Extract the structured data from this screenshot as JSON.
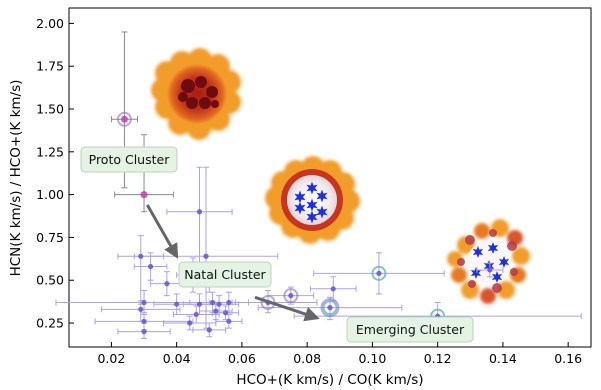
{
  "chart_data": {
    "type": "scatter",
    "xlabel": "HCO+(K km/s) / CO(K km/s)",
    "ylabel": "HCN(K km/s) / HCO+(K km/s)",
    "xlim": [
      0.007,
      0.167
    ],
    "ylim": [
      0.11,
      2.09
    ],
    "xticks": [
      0.02,
      0.04,
      0.06,
      0.08,
      0.1,
      0.12,
      0.14,
      0.16
    ],
    "xtick_labels": [
      "0.02",
      "0.04",
      "0.06",
      "0.08",
      "0.10",
      "0.12",
      "0.14",
      "0.16"
    ],
    "yticks": [
      0.25,
      0.5,
      0.75,
      1.0,
      1.25,
      1.5,
      1.75,
      2.0
    ],
    "ytick_labels": [
      "0.25",
      "0.50",
      "0.75",
      "1.00",
      "1.25",
      "1.50",
      "1.75",
      "2.00"
    ],
    "grid": false,
    "colors": {
      "points": "#6a5ad0",
      "error_bars": "#a9a2ec",
      "proto_point": "#c04ab0",
      "proto_error": "#8a8a8a",
      "ring_teal": "#58b0c0",
      "ring_purple": "#8a6ed0",
      "arrow": "#666666",
      "label_bg": "#e4f3e3",
      "label_border": "#b7d5b4"
    },
    "points": [
      {
        "x": 0.024,
        "y": 1.44,
        "xerr": 0.004,
        "yerr_low": 0.4,
        "yerr_high": 0.51,
        "style": "proto",
        "ring": "purple"
      },
      {
        "x": 0.03,
        "y": 1.0,
        "xerr": 0.009,
        "yerr_low": 0.1,
        "yerr_high": 0.35,
        "style": "proto",
        "ring": "none"
      },
      {
        "x": 0.029,
        "y": 0.64,
        "xerr": 0.007,
        "yerr_low": 0.28,
        "yerr_high": 0.12,
        "style": "normal",
        "ring": "none"
      },
      {
        "x": 0.032,
        "y": 0.58,
        "xerr": 0.005,
        "yerr_low": 0.08,
        "yerr_high": 0.08,
        "style": "normal",
        "ring": "none"
      },
      {
        "x": 0.047,
        "y": 0.9,
        "xerr": 0.01,
        "yerr_low": 0.32,
        "yerr_high": 0.26,
        "style": "normal",
        "ring": "none"
      },
      {
        "x": 0.049,
        "y": 0.64,
        "xerr": 0.022,
        "yerr_low": 0.42,
        "yerr_high": 0.52,
        "style": "normal",
        "ring": "none"
      },
      {
        "x": 0.045,
        "y": 0.53,
        "xerr": 0.005,
        "yerr_low": 0.1,
        "yerr_high": 0.1,
        "style": "normal",
        "ring": "none"
      },
      {
        "x": 0.05,
        "y": 0.5,
        "xerr": 0.004,
        "yerr_low": 0.07,
        "yerr_high": 0.07,
        "style": "normal",
        "ring": "none"
      },
      {
        "x": 0.037,
        "y": 0.48,
        "xerr": 0.005,
        "yerr_low": 0.07,
        "yerr_high": 0.07,
        "style": "normal",
        "ring": "none"
      },
      {
        "x": 0.047,
        "y": 0.36,
        "xerr": 0.005,
        "yerr_low": 0.06,
        "yerr_high": 0.06,
        "style": "normal",
        "ring": "none"
      },
      {
        "x": 0.051,
        "y": 0.37,
        "xerr": 0.007,
        "yerr_low": 0.06,
        "yerr_high": 0.06,
        "style": "normal",
        "ring": "none"
      },
      {
        "x": 0.056,
        "y": 0.37,
        "xerr": 0.006,
        "yerr_low": 0.06,
        "yerr_high": 0.06,
        "style": "normal",
        "ring": "none"
      },
      {
        "x": 0.053,
        "y": 0.36,
        "xerr": 0.006,
        "yerr_low": 0.05,
        "yerr_high": 0.05,
        "style": "normal",
        "ring": "none"
      },
      {
        "x": 0.04,
        "y": 0.36,
        "xerr": 0.007,
        "yerr_low": 0.06,
        "yerr_high": 0.06,
        "style": "normal",
        "ring": "none"
      },
      {
        "x": 0.046,
        "y": 0.3,
        "xerr": 0.007,
        "yerr_low": 0.05,
        "yerr_high": 0.05,
        "style": "normal",
        "ring": "none"
      },
      {
        "x": 0.052,
        "y": 0.32,
        "xerr": 0.005,
        "yerr_low": 0.05,
        "yerr_high": 0.05,
        "style": "normal",
        "ring": "none"
      },
      {
        "x": 0.055,
        "y": 0.31,
        "xerr": 0.004,
        "yerr_low": 0.04,
        "yerr_high": 0.04,
        "style": "normal",
        "ring": "none"
      },
      {
        "x": 0.03,
        "y": 0.37,
        "xerr": 0.027,
        "yerr_low": 0.07,
        "yerr_high": 0.07,
        "style": "normal",
        "ring": "none"
      },
      {
        "x": 0.029,
        "y": 0.33,
        "xerr": 0.012,
        "yerr_low": 0.07,
        "yerr_high": 0.05,
        "style": "normal",
        "ring": "none"
      },
      {
        "x": 0.03,
        "y": 0.26,
        "xerr": 0.015,
        "yerr_low": 0.05,
        "yerr_high": 0.05,
        "style": "normal",
        "ring": "none"
      },
      {
        "x": 0.03,
        "y": 0.2,
        "xerr": 0.008,
        "yerr_low": 0.04,
        "yerr_high": 0.05,
        "style": "normal",
        "ring": "none"
      },
      {
        "x": 0.044,
        "y": 0.25,
        "xerr": 0.008,
        "yerr_low": 0.04,
        "yerr_high": 0.04,
        "style": "normal",
        "ring": "none"
      },
      {
        "x": 0.05,
        "y": 0.21,
        "xerr": 0.005,
        "yerr_low": 0.04,
        "yerr_high": 0.04,
        "style": "normal",
        "ring": "none"
      },
      {
        "x": 0.056,
        "y": 0.26,
        "xerr": 0.004,
        "yerr_low": 0.04,
        "yerr_high": 0.04,
        "style": "normal",
        "ring": "none"
      },
      {
        "x": 0.068,
        "y": 0.37,
        "xerr": 0.015,
        "yerr_low": 0.06,
        "yerr_high": 0.07,
        "style": "normal",
        "ring": "purple"
      },
      {
        "x": 0.075,
        "y": 0.41,
        "xerr": 0.007,
        "yerr_low": 0.05,
        "yerr_high": 0.05,
        "style": "normal",
        "ring": "purple"
      },
      {
        "x": 0.087,
        "y": 0.34,
        "xerr": 0.022,
        "yerr_low": 0.07,
        "yerr_high": 0.06,
        "style": "normal",
        "ring": "both"
      },
      {
        "x": 0.088,
        "y": 0.45,
        "xerr": 0.007,
        "yerr_low": 0.07,
        "yerr_high": 0.07,
        "style": "normal",
        "ring": "none"
      },
      {
        "x": 0.102,
        "y": 0.54,
        "xerr": 0.02,
        "yerr_low": 0.12,
        "yerr_high": 0.12,
        "style": "normal",
        "ring": "teal"
      },
      {
        "x": 0.12,
        "y": 0.29,
        "xerr": 0.044,
        "yerr_low": 0.05,
        "yerr_high": 0.08,
        "style": "normal",
        "ring": "teal"
      },
      {
        "x": 0.136,
        "y": 0.56,
        "xerr": 0.004,
        "yerr_low": 0.04,
        "yerr_high": 0.04,
        "style": "normal",
        "ring": "none"
      }
    ],
    "annotations": [
      {
        "id": "proto",
        "text": "Proto Cluster",
        "x": 0.025,
        "y": 1.14
      },
      {
        "id": "natal",
        "text": "Natal Cluster",
        "x": 0.055,
        "y": 0.5
      },
      {
        "id": "emerging",
        "text": "Emerging Cluster",
        "x": 0.104,
        "y": 0.27
      }
    ],
    "arrows": [
      {
        "from": [
          0.031,
          0.94
        ],
        "to": [
          0.04,
          0.64
        ]
      },
      {
        "from": [
          0.064,
          0.4
        ],
        "to": [
          0.083,
          0.28
        ]
      }
    ],
    "illustrations": [
      {
        "id": "proto-cluster-illustration",
        "x": 0.046,
        "y": 1.58
      },
      {
        "id": "natal-cluster-illustration",
        "x": 0.068,
        "y": 0.89
      },
      {
        "id": "emerging-cluster-illustration",
        "x": 0.135,
        "y": 0.57
      }
    ]
  }
}
